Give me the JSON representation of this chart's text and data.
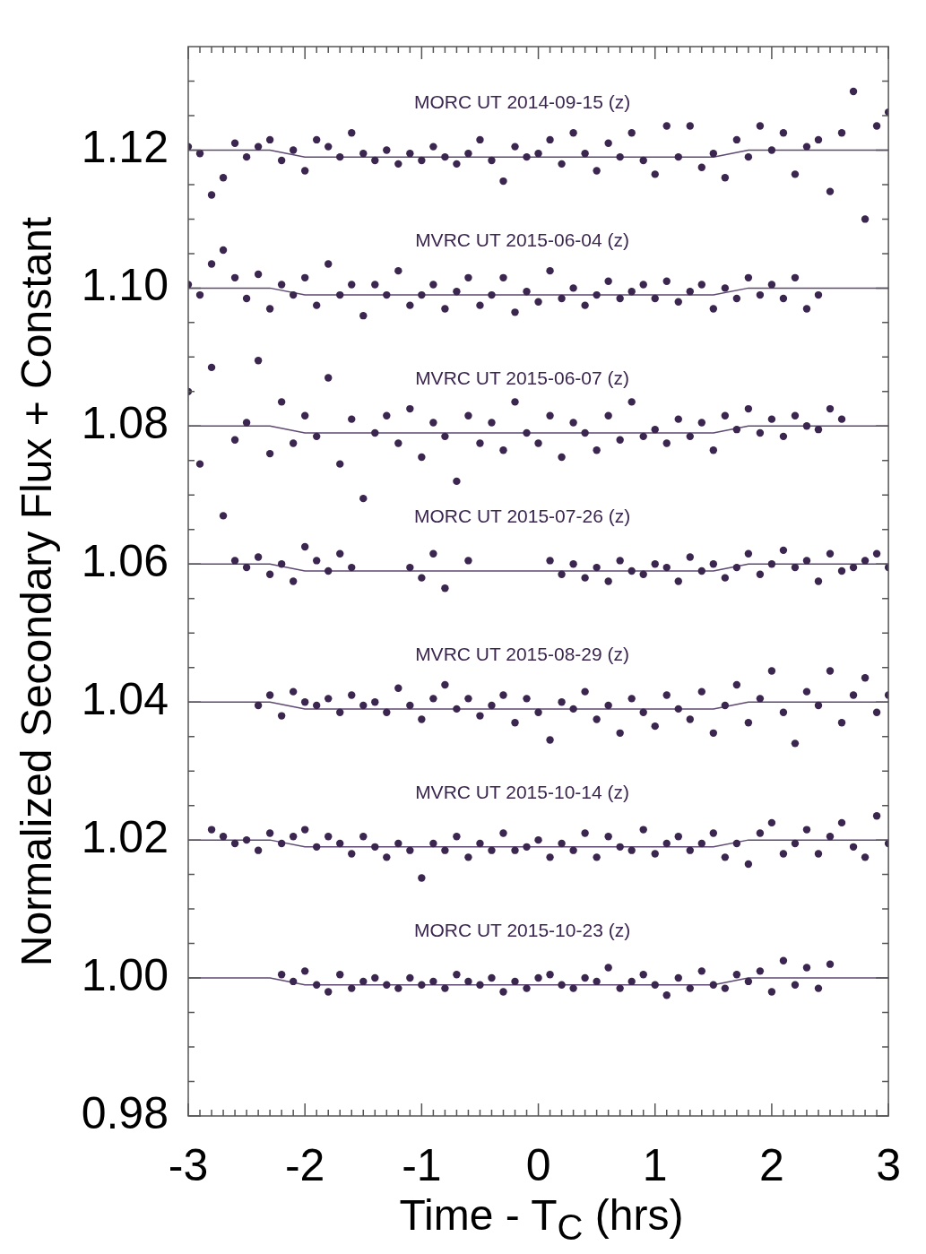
{
  "chart_data": {
    "type": "scatter",
    "xlabel": "Time - T$_{C}$ (hrs)",
    "ylabel": "Normalized Secondary Flux + Constant",
    "marker": "circle",
    "legend": false,
    "xlim": [
      -3,
      3
    ],
    "ylim": [
      0.98,
      1.135
    ],
    "xticks": [
      -3,
      {
        "value": -2.9,
        "label": null
      },
      {
        "value": -2.8,
        "label": null
      },
      {
        "value": -2.7,
        "label": null
      },
      {
        "value": -2.6,
        "label": null
      },
      {
        "value": -2.5,
        "label": null
      },
      {
        "value": -2.4,
        "label": null
      },
      {
        "value": -2.3,
        "label": null
      },
      {
        "value": -2.2,
        "label": null
      },
      {
        "value": -2.1,
        "label": null
      },
      -2,
      {
        "value": -1.9,
        "label": null
      },
      {
        "value": -1.8,
        "label": null
      },
      {
        "value": -1.7,
        "label": null
      },
      {
        "value": -1.6,
        "label": null
      },
      {
        "value": -1.5,
        "label": null
      },
      {
        "value": -1.4,
        "label": null
      },
      {
        "value": -1.3,
        "label": null
      },
      {
        "value": -1.2,
        "label": null
      },
      {
        "value": -1.1,
        "label": null
      },
      -1,
      {
        "value": -0.9,
        "label": null
      },
      {
        "value": -0.8,
        "label": null
      },
      {
        "value": -0.7,
        "label": null
      },
      {
        "value": -0.6,
        "label": null
      },
      {
        "value": -0.5,
        "label": null
      },
      {
        "value": -0.4,
        "label": null
      },
      {
        "value": -0.3,
        "label": null
      },
      {
        "value": -0.2,
        "label": null
      },
      {
        "value": -0.1,
        "label": null
      },
      0,
      {
        "value": 0.1,
        "label": null
      },
      {
        "value": 0.2,
        "label": null
      },
      {
        "value": 0.3,
        "label": null
      },
      {
        "value": 0.4,
        "label": null
      },
      {
        "value": 0.5,
        "label": null
      },
      {
        "value": 0.6,
        "label": null
      },
      {
        "value": 0.7,
        "label": null
      },
      {
        "value": 0.8,
        "label": null
      },
      {
        "value": 0.9,
        "label": null
      },
      1,
      {
        "value": 1.1,
        "label": null
      },
      {
        "value": 1.2,
        "label": null
      },
      {
        "value": 1.3,
        "label": null
      },
      {
        "value": 1.4,
        "label": null
      },
      {
        "value": 1.5,
        "label": null
      },
      {
        "value": 1.6,
        "label": null
      },
      {
        "value": 1.7,
        "label": null
      },
      {
        "value": 1.8,
        "label": null
      },
      {
        "value": 1.9,
        "label": null
      },
      2,
      {
        "value": 2.1,
        "label": null
      },
      {
        "value": 2.2,
        "label": null
      },
      {
        "value": 2.3,
        "label": null
      },
      {
        "value": 2.4,
        "label": null
      },
      {
        "value": 2.5,
        "label": null
      },
      {
        "value": 2.6,
        "label": null
      },
      {
        "value": 2.7,
        "label": null
      },
      {
        "value": 2.8,
        "label": null
      },
      {
        "value": 2.9,
        "label": null
      },
      3
    ],
    "yticks": [
      {
        "value": 0.98,
        "label": "0.98"
      },
      {
        "value": 0.985,
        "label": null
      },
      {
        "value": 0.99,
        "label": null
      },
      {
        "value": 0.995,
        "label": null
      },
      {
        "value": 1.0,
        "label": "1.00"
      },
      {
        "value": 1.005,
        "label": null
      },
      {
        "value": 1.01,
        "label": null
      },
      {
        "value": 1.015,
        "label": null
      },
      {
        "value": 1.02,
        "label": "1.02"
      },
      {
        "value": 1.025,
        "label": null
      },
      {
        "value": 1.03,
        "label": null
      },
      {
        "value": 1.035,
        "label": null
      },
      {
        "value": 1.04,
        "label": "1.04"
      },
      {
        "value": 1.045,
        "label": null
      },
      {
        "value": 1.05,
        "label": null
      },
      {
        "value": 1.055,
        "label": null
      },
      {
        "value": 1.06,
        "label": "1.06"
      },
      {
        "value": 1.065,
        "label": null
      },
      {
        "value": 1.07,
        "label": null
      },
      {
        "value": 1.075,
        "label": null
      },
      {
        "value": 1.08,
        "label": "1.08"
      },
      {
        "value": 1.085,
        "label": null
      },
      {
        "value": 1.09,
        "label": null
      },
      {
        "value": 1.095,
        "label": null
      },
      {
        "value": 1.1,
        "label": "1.10"
      },
      {
        "value": 1.105,
        "label": null
      },
      {
        "value": 1.11,
        "label": null
      },
      {
        "value": 1.115,
        "label": null
      },
      {
        "value": 1.12,
        "label": "1.12"
      },
      {
        "value": 1.125,
        "label": null
      },
      {
        "value": 1.13,
        "label": null
      }
    ],
    "series": [
      {
        "name": "MORC UT 2014-09-15 (z)",
        "color": "#3b2650",
        "x": [
          -3,
          -2.9,
          -2.8,
          -2.7,
          -2.6,
          -2.5,
          -2.4,
          -2.3,
          -2.2,
          -2.1,
          -2,
          -1.9,
          -1.8,
          -1.7,
          -1.6,
          -1.5,
          -1.4,
          -1.3,
          -1.2,
          -1.1,
          -1,
          -0.9,
          -0.8,
          -0.7,
          -0.6,
          -0.5,
          -0.4,
          -0.3,
          -0.2,
          -0.1,
          0,
          0.1,
          0.2,
          0.3,
          0.4,
          0.5,
          0.6,
          0.7,
          0.8,
          0.9,
          1,
          1.1,
          1.2,
          1.3,
          1.4,
          1.5,
          1.6,
          1.7,
          1.8,
          1.9,
          2,
          2.1,
          2.2,
          2.3,
          2.4,
          2.5,
          2.6,
          2.7,
          2.8,
          2.9,
          3
        ],
        "values": [
          1.1205,
          1.1195,
          1.1135,
          1.116,
          1.121,
          1.119,
          1.1205,
          1.1215,
          1.1185,
          1.12,
          1.117,
          1.1215,
          1.1205,
          1.119,
          1.1225,
          1.1195,
          1.1185,
          1.12,
          1.118,
          1.1195,
          1.1185,
          1.1205,
          1.119,
          1.118,
          1.1195,
          1.1215,
          1.1185,
          1.1155,
          1.1205,
          1.119,
          1.1195,
          1.1215,
          1.118,
          1.1225,
          1.1195,
          1.117,
          1.121,
          1.119,
          1.1225,
          1.1185,
          1.1165,
          1.1235,
          1.119,
          1.1235,
          1.1175,
          1.1195,
          1.116,
          1.1215,
          1.119,
          1.1235,
          1.12,
          1.1225,
          1.1165,
          1.1205,
          1.1215,
          1.114,
          1.1225,
          1.1285,
          1.11,
          1.1235,
          1.1255
        ]
      },
      {
        "name": "MVRC UT 2015-06-04 (z)",
        "color": "#3b2650",
        "x": [
          -3,
          -2.9,
          -2.8,
          -2.7,
          -2.6,
          -2.5,
          -2.4,
          -2.3,
          -2.2,
          -2.1,
          -2,
          -1.9,
          -1.8,
          -1.7,
          -1.6,
          -1.5,
          -1.4,
          -1.3,
          -1.2,
          -1.1,
          -1,
          -0.9,
          -0.8,
          -0.7,
          -0.6,
          -0.5,
          -0.4,
          -0.3,
          -0.2,
          -0.1,
          0,
          0.1,
          0.2,
          0.3,
          0.4,
          0.5,
          0.6,
          0.7,
          0.8,
          0.9,
          1,
          1.1,
          1.2,
          1.3,
          1.4,
          1.5,
          1.6,
          1.7,
          1.8,
          1.9,
          2,
          2.1,
          2.2,
          2.3,
          2.4
        ],
        "values": [
          1.1005,
          1.099,
          1.1035,
          1.1055,
          1.1015,
          1.0985,
          1.102,
          1.097,
          1.1005,
          1.099,
          1.1015,
          1.0975,
          1.1035,
          1.099,
          1.1005,
          1.096,
          1.1005,
          1.099,
          1.1025,
          1.0975,
          1.099,
          1.1005,
          1.097,
          1.0995,
          1.1015,
          1.0975,
          1.099,
          1.1015,
          1.0965,
          1.0995,
          1.098,
          1.1025,
          1.0985,
          1.1,
          1.0975,
          1.099,
          1.101,
          1.0985,
          1.0995,
          1.1005,
          1.0985,
          1.101,
          1.098,
          1.0995,
          1.1005,
          1.097,
          1.1,
          1.0985,
          1.1015,
          1.099,
          1.1005,
          1.0985,
          1.1015,
          1.097,
          1.099
        ]
      },
      {
        "name": "MVRC UT 2015-06-07 (z)",
        "color": "#3b2650",
        "x": [
          -3,
          -2.9,
          -2.8,
          -2.7,
          -2.6,
          -2.5,
          -2.4,
          -2.3,
          -2.2,
          -2.1,
          -2,
          -1.9,
          -1.8,
          -1.7,
          -1.6,
          -1.5,
          -1.4,
          -1.3,
          -1.2,
          -1.1,
          -1,
          -0.9,
          -0.8,
          -0.7,
          -0.6,
          -0.5,
          -0.4,
          -0.3,
          -0.2,
          -0.1,
          0,
          0.1,
          0.2,
          0.3,
          0.4,
          0.5,
          0.6,
          0.7,
          0.8,
          0.9,
          1,
          1.1,
          1.2,
          1.3,
          1.4,
          1.5,
          1.6,
          1.7,
          1.8,
          1.9,
          2,
          2.1,
          2.2,
          2.3,
          2.4,
          2.5,
          2.6
        ],
        "values": [
          1.085,
          1.0745,
          1.0885,
          1.067,
          1.078,
          1.0805,
          1.0895,
          1.076,
          1.0835,
          1.0775,
          1.0815,
          1.0785,
          1.087,
          1.0745,
          1.081,
          1.0695,
          1.079,
          1.0815,
          1.0775,
          1.0825,
          1.0755,
          1.0805,
          1.0785,
          1.072,
          1.0815,
          1.0775,
          1.0805,
          1.0765,
          1.0835,
          1.079,
          1.0775,
          1.0815,
          1.0755,
          1.0805,
          1.079,
          1.0765,
          1.0815,
          1.078,
          1.0835,
          1.0785,
          1.0795,
          1.0775,
          1.081,
          1.0785,
          1.0805,
          1.0765,
          1.0815,
          1.0795,
          1.0825,
          1.079,
          1.081,
          1.0785,
          1.0815,
          1.08,
          1.0795,
          1.0825,
          1.081
        ]
      },
      {
        "name": "MORC UT 2015-07-26 (z)",
        "color": "#3b2650",
        "x": [
          -2.6,
          -2.5,
          -2.4,
          -2.3,
          -2.2,
          -2.1,
          -2,
          -1.9,
          -1.8,
          -1.7,
          -1.6,
          -1.1,
          -1,
          -0.9,
          -0.8,
          -0.6,
          0.1,
          0.2,
          0.3,
          0.4,
          0.5,
          0.6,
          0.7,
          0.8,
          0.9,
          1,
          1.1,
          1.2,
          1.3,
          1.4,
          1.5,
          1.6,
          1.7,
          1.8,
          1.9,
          2,
          2.1,
          2.2,
          2.3,
          2.4,
          2.5,
          2.6,
          2.7,
          2.8,
          2.9,
          3
        ],
        "values": [
          1.0605,
          1.0595,
          1.061,
          1.0585,
          1.06,
          1.0575,
          1.0625,
          1.0605,
          1.059,
          1.0615,
          1.0595,
          1.0595,
          1.058,
          1.0615,
          1.0565,
          1.0605,
          1.0605,
          1.0585,
          1.06,
          1.058,
          1.0595,
          1.0575,
          1.0605,
          1.059,
          1.0585,
          1.06,
          1.0595,
          1.0575,
          1.061,
          1.059,
          1.06,
          1.058,
          1.0595,
          1.0615,
          1.0585,
          1.06,
          1.062,
          1.0595,
          1.0605,
          1.0575,
          1.0615,
          1.059,
          1.0595,
          1.0605,
          1.0615,
          1.0595
        ]
      },
      {
        "name": "MVRC UT 2015-08-29 (z)",
        "color": "#3b2650",
        "x": [
          -2.4,
          -2.3,
          -2.2,
          -2.1,
          -2,
          -1.9,
          -1.8,
          -1.7,
          -1.6,
          -1.5,
          -1.4,
          -1.3,
          -1.2,
          -1.1,
          -1,
          -0.9,
          -0.8,
          -0.7,
          -0.6,
          -0.5,
          -0.4,
          -0.3,
          -0.2,
          -0.1,
          0,
          0.1,
          0.2,
          0.3,
          0.4,
          0.5,
          0.6,
          0.7,
          0.8,
          0.9,
          1,
          1.1,
          1.2,
          1.3,
          1.4,
          1.5,
          1.6,
          1.7,
          1.8,
          1.9,
          2,
          2.1,
          2.2,
          2.3,
          2.4,
          2.5,
          2.6,
          2.7,
          2.8,
          2.9,
          3
        ],
        "values": [
          1.0395,
          1.041,
          1.038,
          1.0415,
          1.04,
          1.0395,
          1.0405,
          1.0385,
          1.041,
          1.0395,
          1.04,
          1.0385,
          1.042,
          1.0395,
          1.0375,
          1.0405,
          1.0425,
          1.039,
          1.0405,
          1.038,
          1.0395,
          1.041,
          1.037,
          1.0405,
          1.0385,
          1.0345,
          1.04,
          1.039,
          1.0415,
          1.0375,
          1.0395,
          1.0355,
          1.0405,
          1.0385,
          1.0365,
          1.041,
          1.039,
          1.0375,
          1.0415,
          1.0355,
          1.0395,
          1.0425,
          1.037,
          1.0405,
          1.0445,
          1.0385,
          1.034,
          1.0415,
          1.0395,
          1.0445,
          1.037,
          1.041,
          1.0435,
          1.0385,
          1.041
        ]
      },
      {
        "name": "MVRC UT 2015-10-14 (z)",
        "color": "#3b2650",
        "x": [
          -2.8,
          -2.7,
          -2.6,
          -2.5,
          -2.4,
          -2.3,
          -2.2,
          -2.1,
          -2,
          -1.9,
          -1.8,
          -1.7,
          -1.6,
          -1.5,
          -1.4,
          -1.3,
          -1.2,
          -1.1,
          -1,
          -0.9,
          -0.8,
          -0.7,
          -0.6,
          -0.5,
          -0.4,
          -0.3,
          -0.2,
          -0.1,
          0,
          0.1,
          0.2,
          0.3,
          0.4,
          0.5,
          0.6,
          0.7,
          0.8,
          0.9,
          1,
          1.1,
          1.2,
          1.3,
          1.4,
          1.5,
          1.6,
          1.7,
          1.8,
          1.9,
          2,
          2.1,
          2.2,
          2.3,
          2.4,
          2.5,
          2.6,
          2.7,
          2.8,
          2.9,
          3
        ],
        "values": [
          1.0215,
          1.0205,
          1.0195,
          1.02,
          1.0185,
          1.021,
          1.0195,
          1.0205,
          1.0215,
          1.019,
          1.0205,
          1.0195,
          1.018,
          1.0205,
          1.019,
          1.0175,
          1.0195,
          1.0185,
          1.0145,
          1.0195,
          1.0185,
          1.0205,
          1.0175,
          1.0195,
          1.0185,
          1.021,
          1.0185,
          1.019,
          1.02,
          1.0175,
          1.0195,
          1.0185,
          1.021,
          1.0175,
          1.0205,
          1.019,
          1.0185,
          1.0215,
          1.018,
          1.0195,
          1.0205,
          1.0185,
          1.0195,
          1.021,
          1.0175,
          1.0195,
          1.0165,
          1.021,
          1.0225,
          1.018,
          1.0195,
          1.0215,
          1.018,
          1.0205,
          1.0225,
          1.019,
          1.0175,
          1.0235,
          1.0195
        ]
      },
      {
        "name": "MORC UT 2015-10-23 (z)",
        "color": "#3b2650",
        "x": [
          -2.2,
          -2.1,
          -2,
          -1.9,
          -1.8,
          -1.7,
          -1.6,
          -1.5,
          -1.4,
          -1.3,
          -1.2,
          -1.1,
          -1,
          -0.9,
          -0.8,
          -0.7,
          -0.6,
          -0.5,
          -0.4,
          -0.3,
          -0.2,
          -0.1,
          0,
          0.1,
          0.2,
          0.3,
          0.4,
          0.5,
          0.6,
          0.7,
          0.8,
          0.9,
          1,
          1.1,
          1.2,
          1.3,
          1.4,
          1.5,
          1.6,
          1.7,
          1.8,
          1.9,
          2,
          2.1,
          2.2,
          2.3,
          2.4,
          2.5
        ],
        "values": [
          1.0005,
          0.9995,
          1.001,
          0.999,
          0.998,
          1.0005,
          0.9985,
          0.9995,
          1,
          0.999,
          0.9985,
          1,
          0.999,
          0.9995,
          0.9985,
          1.0005,
          0.9995,
          0.999,
          1,
          0.998,
          0.9995,
          0.9985,
          1,
          1.0005,
          0.999,
          0.9985,
          1,
          0.9995,
          1.0015,
          0.9985,
          0.9995,
          1.0005,
          0.999,
          0.9975,
          1,
          0.9985,
          1.001,
          0.999,
          0.9985,
          1.0005,
          0.9995,
          1.001,
          0.998,
          1.0025,
          0.999,
          1.0015,
          0.9985,
          1.002
        ]
      },
      {
        "type": "line",
        "marker": "none",
        "color": "#5e4a72",
        "x": [
          -3,
          -2.3,
          -2,
          1.5,
          1.8,
          3
        ],
        "values": [
          1.12,
          1.12,
          1.119,
          1.119,
          1.12,
          1.12
        ]
      },
      {
        "type": "line",
        "marker": "none",
        "color": "#5e4a72",
        "x": [
          -3,
          -2.3,
          -2,
          1.5,
          1.8,
          3
        ],
        "values": [
          1.1,
          1.1,
          1.099,
          1.099,
          1.1,
          1.1
        ]
      },
      {
        "type": "line",
        "marker": "none",
        "color": "#5e4a72",
        "x": [
          -3,
          -2.3,
          -2,
          1.5,
          1.8,
          3
        ],
        "values": [
          1.08,
          1.08,
          1.079,
          1.079,
          1.08,
          1.08
        ]
      },
      {
        "type": "line",
        "marker": "none",
        "color": "#5e4a72",
        "x": [
          -3,
          -2.3,
          -2,
          1.5,
          1.8,
          3
        ],
        "values": [
          1.06,
          1.06,
          1.059,
          1.059,
          1.06,
          1.06
        ]
      },
      {
        "type": "line",
        "marker": "none",
        "color": "#5e4a72",
        "x": [
          -3,
          -2.3,
          -2,
          1.5,
          1.8,
          3
        ],
        "values": [
          1.04,
          1.04,
          1.039,
          1.039,
          1.04,
          1.04
        ]
      },
      {
        "type": "line",
        "marker": "none",
        "color": "#5e4a72",
        "x": [
          -3,
          -2.3,
          -2,
          1.5,
          1.8,
          3
        ],
        "values": [
          1.02,
          1.02,
          1.019,
          1.019,
          1.02,
          1.02
        ]
      },
      {
        "type": "line",
        "marker": "none",
        "color": "#5e4a72",
        "x": [
          -3,
          -2.3,
          -2,
          1.5,
          1.8,
          3
        ],
        "values": [
          1,
          1,
          0.999,
          0.999,
          1,
          1
        ]
      }
    ]
  }
}
